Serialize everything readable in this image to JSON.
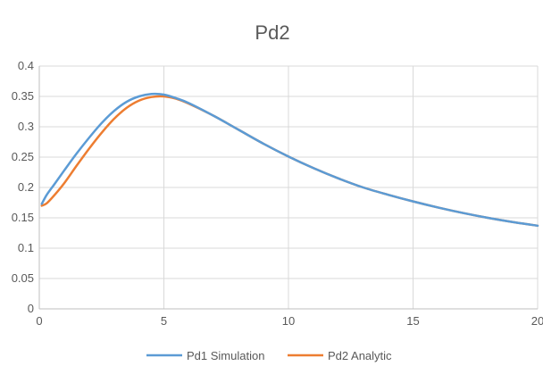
{
  "chart_data": {
    "type": "line",
    "title": "Pd2",
    "xlabel": "",
    "ylabel": "",
    "xlim": [
      0,
      20
    ],
    "ylim": [
      0,
      0.4
    ],
    "x_ticks": [
      "0",
      "5",
      "10",
      "15",
      "20"
    ],
    "y_ticks": [
      "0",
      "0.05",
      "0.1",
      "0.15",
      "0.2",
      "0.25",
      "0.3",
      "0.35",
      "0.4"
    ],
    "grid": true,
    "legend_position": "bottom",
    "colors": {
      "grid": "#d9d9d9",
      "axis": "#bfbfbf",
      "text": "#595959"
    },
    "series": [
      {
        "name": "Pd1 Simulation",
        "color": "#5b9bd5",
        "x": [
          0.1,
          0.3,
          0.6,
          1.0,
          1.5,
          2.0,
          2.5,
          3.0,
          3.5,
          4.0,
          4.5,
          5.0,
          5.5,
          6.0,
          7.0,
          8.0,
          9.0,
          10.0,
          11.0,
          12.0,
          13.0,
          14.0,
          15.0,
          16.0,
          17.0,
          18.0,
          19.0,
          20.0
        ],
        "y": [
          0.173,
          0.188,
          0.205,
          0.228,
          0.256,
          0.282,
          0.306,
          0.326,
          0.341,
          0.35,
          0.354,
          0.353,
          0.347,
          0.339,
          0.318,
          0.295,
          0.272,
          0.251,
          0.232,
          0.215,
          0.2,
          0.188,
          0.177,
          0.167,
          0.158,
          0.15,
          0.143,
          0.137
        ]
      },
      {
        "name": "Pd2 Analytic",
        "color": "#ed7d31",
        "x": [
          0.1,
          0.3,
          0.6,
          1.0,
          1.5,
          2.0,
          2.5,
          3.0,
          3.5,
          4.0,
          4.5,
          5.0,
          5.5,
          6.0,
          7.0,
          8.0,
          9.0,
          10.0,
          11.0,
          12.0,
          13.0,
          14.0,
          15.0,
          16.0,
          17.0,
          18.0,
          19.0,
          20.0
        ],
        "y": [
          0.17,
          0.174,
          0.187,
          0.207,
          0.236,
          0.264,
          0.29,
          0.313,
          0.331,
          0.343,
          0.349,
          0.35,
          0.346,
          0.338,
          0.318,
          0.295,
          0.272,
          0.251,
          0.232,
          0.215,
          0.2,
          0.188,
          0.177,
          0.167,
          0.158,
          0.15,
          0.143,
          0.137
        ]
      }
    ]
  }
}
